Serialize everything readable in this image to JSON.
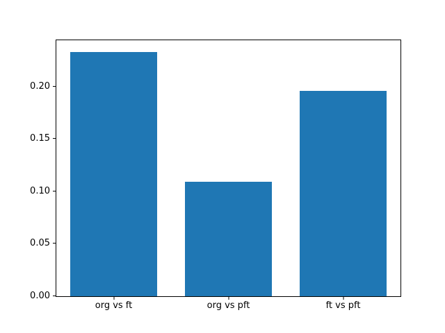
{
  "figure": {
    "background_color": "#ffffff",
    "spine_color": "#000000",
    "tick_color": "#000000",
    "text_color": "#000000"
  },
  "chart_data": {
    "type": "bar",
    "title": "",
    "xlabel": "",
    "ylabel": "",
    "categories": [
      "org vs ft",
      "org vs pft",
      "ft vs pft"
    ],
    "values": [
      0.233,
      0.109,
      0.196
    ],
    "bar_color": "#1f77b4",
    "bar_width_fraction": 0.76,
    "ylim": [
      0,
      0.244
    ],
    "ytick_values": [
      0.0,
      0.05,
      0.1,
      0.15,
      0.2
    ],
    "ytick_labels": [
      "0.00",
      "0.05",
      "0.10",
      "0.15",
      "0.20"
    ],
    "grid": false,
    "legend": null
  }
}
